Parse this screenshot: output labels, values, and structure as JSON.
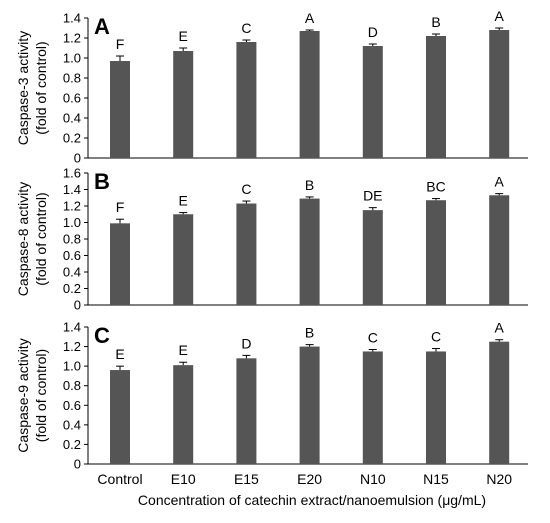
{
  "chart_data": [
    {
      "type": "bar",
      "panel_label": "A",
      "ylabel_line1": "Caspase-3 activity",
      "ylabel_line2": "(fold of control)",
      "ylim": [
        0,
        1.4
      ],
      "yticks": [
        "0",
        "0.2",
        "0.4",
        "0.6",
        "0.8",
        "1.0",
        "1.2",
        "1.4"
      ],
      "categories": [
        "Control",
        "E10",
        "E15",
        "E20",
        "N10",
        "N15",
        "N20"
      ],
      "values": [
        0.97,
        1.07,
        1.16,
        1.27,
        1.12,
        1.22,
        1.28
      ],
      "errors": [
        0.05,
        0.03,
        0.02,
        0.01,
        0.02,
        0.02,
        0.02
      ],
      "letters": [
        "F",
        "E",
        "C",
        "A",
        "D",
        "B",
        "A"
      ],
      "bar_color": "#555555"
    },
    {
      "type": "bar",
      "panel_label": "B",
      "ylabel_line1": "Caspase-8 activity",
      "ylabel_line2": "(fold of control)",
      "ylim": [
        0,
        1.6
      ],
      "yticks": [
        "0",
        "0.2",
        "0.4",
        "0.6",
        "0.8",
        "1.0",
        "1.2",
        "1.4",
        "1.6"
      ],
      "categories": [
        "Control",
        "E10",
        "E15",
        "E20",
        "N10",
        "N15",
        "N20"
      ],
      "values": [
        0.99,
        1.1,
        1.23,
        1.29,
        1.15,
        1.27,
        1.33
      ],
      "errors": [
        0.05,
        0.02,
        0.03,
        0.02,
        0.03,
        0.02,
        0.02
      ],
      "letters": [
        "F",
        "E",
        "C",
        "B",
        "DE",
        "BC",
        "A"
      ],
      "bar_color": "#555555"
    },
    {
      "type": "bar",
      "panel_label": "C",
      "ylabel_line1": "Caspase-9 activity",
      "ylabel_line2": "(fold of control)",
      "ylim": [
        0,
        1.4
      ],
      "yticks": [
        "0",
        "0.2",
        "0.4",
        "0.6",
        "0.8",
        "1.0",
        "1.2",
        "1.4"
      ],
      "categories": [
        "Control",
        "E10",
        "E15",
        "E20",
        "N10",
        "N15",
        "N20"
      ],
      "values": [
        0.96,
        1.01,
        1.08,
        1.2,
        1.15,
        1.15,
        1.25
      ],
      "errors": [
        0.04,
        0.03,
        0.03,
        0.02,
        0.02,
        0.03,
        0.02
      ],
      "letters": [
        "E",
        "E",
        "D",
        "B",
        "C",
        "C",
        "A"
      ],
      "bar_color": "#555555"
    }
  ],
  "xlabel": "Concentration of catechin extract/nanoemulsion (μg/mL)"
}
